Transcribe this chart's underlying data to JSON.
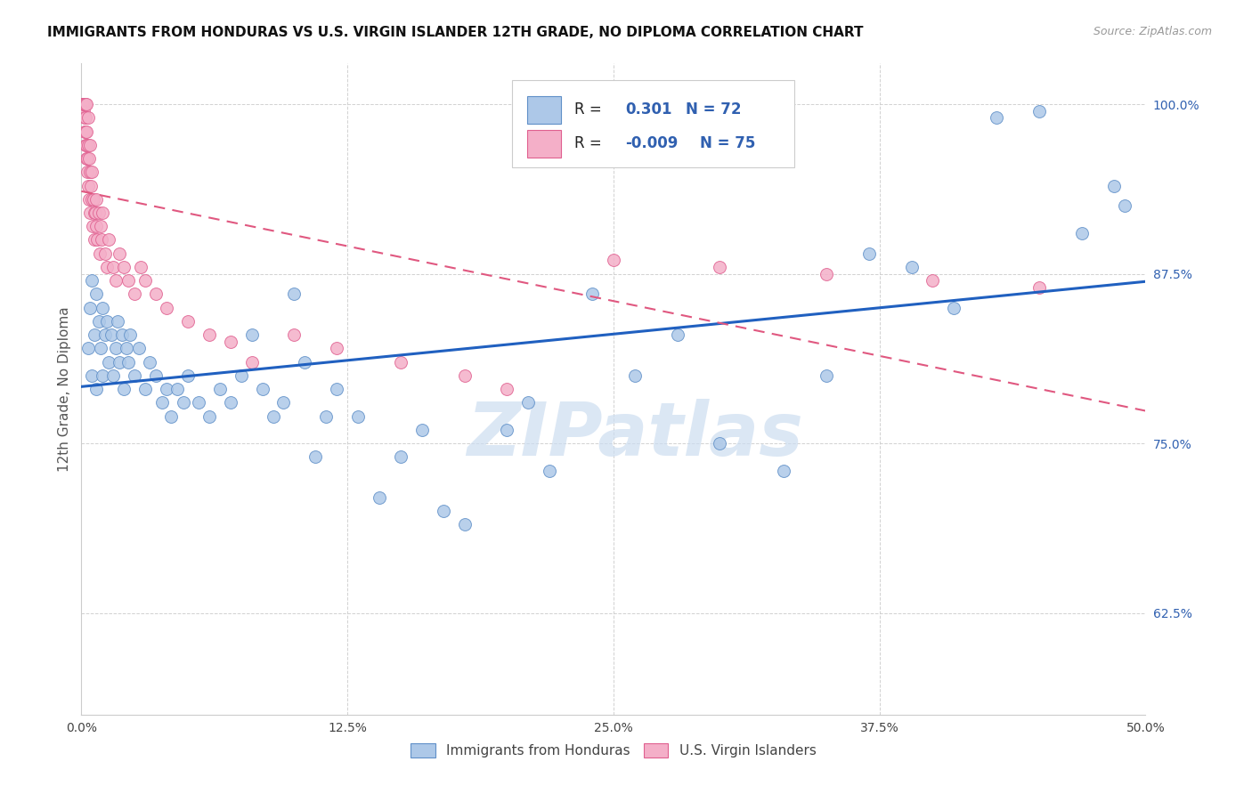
{
  "title": "IMMIGRANTS FROM HONDURAS VS U.S. VIRGIN ISLANDER 12TH GRADE, NO DIPLOMA CORRELATION CHART",
  "source": "Source: ZipAtlas.com",
  "ylabel": "12th Grade, No Diploma",
  "x_tick_labels": [
    "0.0%",
    "12.5%",
    "25.0%",
    "37.5%",
    "50.0%"
  ],
  "x_tick_values": [
    0.0,
    12.5,
    25.0,
    37.5,
    50.0
  ],
  "y_tick_labels": [
    "62.5%",
    "75.0%",
    "87.5%",
    "100.0%"
  ],
  "y_tick_values": [
    62.5,
    75.0,
    87.5,
    100.0
  ],
  "xlim": [
    0.0,
    50.0
  ],
  "ylim": [
    55.0,
    103.0
  ],
  "legend_r_blue": "0.301",
  "legend_n_blue": "72",
  "legend_r_pink": "-0.009",
  "legend_n_pink": "75",
  "legend_label_blue": "Immigrants from Honduras",
  "legend_label_pink": "U.S. Virgin Islanders",
  "blue_color": "#adc8e8",
  "pink_color": "#f4afc8",
  "blue_edge_color": "#6090c8",
  "pink_edge_color": "#e06090",
  "blue_line_color": "#2060c0",
  "pink_line_color": "#e05880",
  "axis_text_color": "#3060b0",
  "watermark_color": "#ccddf0",
  "watermark_text": "ZIPatlas",
  "title_fontsize": 11,
  "source_fontsize": 9,
  "blue_x": [
    0.3,
    0.4,
    0.5,
    0.5,
    0.6,
    0.7,
    0.7,
    0.8,
    0.9,
    1.0,
    1.0,
    1.1,
    1.2,
    1.3,
    1.4,
    1.5,
    1.6,
    1.7,
    1.8,
    1.9,
    2.0,
    2.1,
    2.2,
    2.3,
    2.5,
    2.7,
    3.0,
    3.2,
    3.5,
    3.8,
    4.0,
    4.2,
    4.5,
    4.8,
    5.0,
    5.5,
    6.0,
    6.5,
    7.0,
    7.5,
    8.0,
    8.5,
    9.0,
    9.5,
    10.0,
    10.5,
    11.0,
    11.5,
    12.0,
    13.0,
    14.0,
    15.0,
    16.0,
    17.0,
    18.0,
    20.0,
    21.0,
    22.0,
    24.0,
    26.0,
    28.0,
    30.0,
    33.0,
    35.0,
    37.0,
    39.0,
    41.0,
    43.0,
    45.0,
    47.0,
    48.5,
    49.0
  ],
  "blue_y": [
    82.0,
    85.0,
    80.0,
    87.0,
    83.0,
    86.0,
    79.0,
    84.0,
    82.0,
    80.0,
    85.0,
    83.0,
    84.0,
    81.0,
    83.0,
    80.0,
    82.0,
    84.0,
    81.0,
    83.0,
    79.0,
    82.0,
    81.0,
    83.0,
    80.0,
    82.0,
    79.0,
    81.0,
    80.0,
    78.0,
    79.0,
    77.0,
    79.0,
    78.0,
    80.0,
    78.0,
    77.0,
    79.0,
    78.0,
    80.0,
    83.0,
    79.0,
    77.0,
    78.0,
    86.0,
    81.0,
    74.0,
    77.0,
    79.0,
    77.0,
    71.0,
    74.0,
    76.0,
    70.0,
    69.0,
    76.0,
    78.0,
    73.0,
    86.0,
    80.0,
    83.0,
    75.0,
    73.0,
    80.0,
    89.0,
    88.0,
    85.0,
    99.0,
    99.5,
    90.5,
    94.0,
    92.5
  ],
  "pink_x": [
    0.05,
    0.06,
    0.07,
    0.08,
    0.09,
    0.1,
    0.1,
    0.12,
    0.13,
    0.14,
    0.15,
    0.15,
    0.16,
    0.17,
    0.18,
    0.19,
    0.2,
    0.2,
    0.22,
    0.23,
    0.25,
    0.25,
    0.27,
    0.28,
    0.3,
    0.3,
    0.32,
    0.35,
    0.37,
    0.4,
    0.4,
    0.42,
    0.45,
    0.5,
    0.5,
    0.52,
    0.55,
    0.6,
    0.62,
    0.65,
    0.7,
    0.7,
    0.75,
    0.8,
    0.85,
    0.9,
    0.95,
    1.0,
    1.1,
    1.2,
    1.3,
    1.5,
    1.6,
    1.8,
    2.0,
    2.2,
    2.5,
    2.8,
    3.0,
    3.5,
    4.0,
    5.0,
    6.0,
    7.0,
    8.0,
    10.0,
    12.0,
    15.0,
    18.0,
    20.0,
    25.0,
    30.0,
    35.0,
    40.0,
    45.0
  ],
  "pink_y": [
    100.0,
    100.0,
    100.0,
    100.0,
    100.0,
    100.0,
    99.5,
    100.0,
    100.0,
    100.0,
    100.0,
    99.0,
    100.0,
    98.0,
    97.0,
    99.0,
    98.0,
    100.0,
    97.0,
    96.0,
    98.0,
    100.0,
    96.0,
    95.0,
    97.0,
    99.0,
    94.0,
    96.0,
    93.0,
    95.0,
    97.0,
    92.0,
    94.0,
    93.0,
    95.0,
    91.0,
    93.0,
    92.0,
    90.0,
    92.0,
    91.0,
    93.0,
    90.0,
    92.0,
    89.0,
    91.0,
    90.0,
    92.0,
    89.0,
    88.0,
    90.0,
    88.0,
    87.0,
    89.0,
    88.0,
    87.0,
    86.0,
    88.0,
    87.0,
    86.0,
    85.0,
    84.0,
    83.0,
    82.5,
    81.0,
    83.0,
    82.0,
    81.0,
    80.0,
    79.0,
    88.5,
    88.0,
    87.5,
    87.0,
    86.5
  ]
}
